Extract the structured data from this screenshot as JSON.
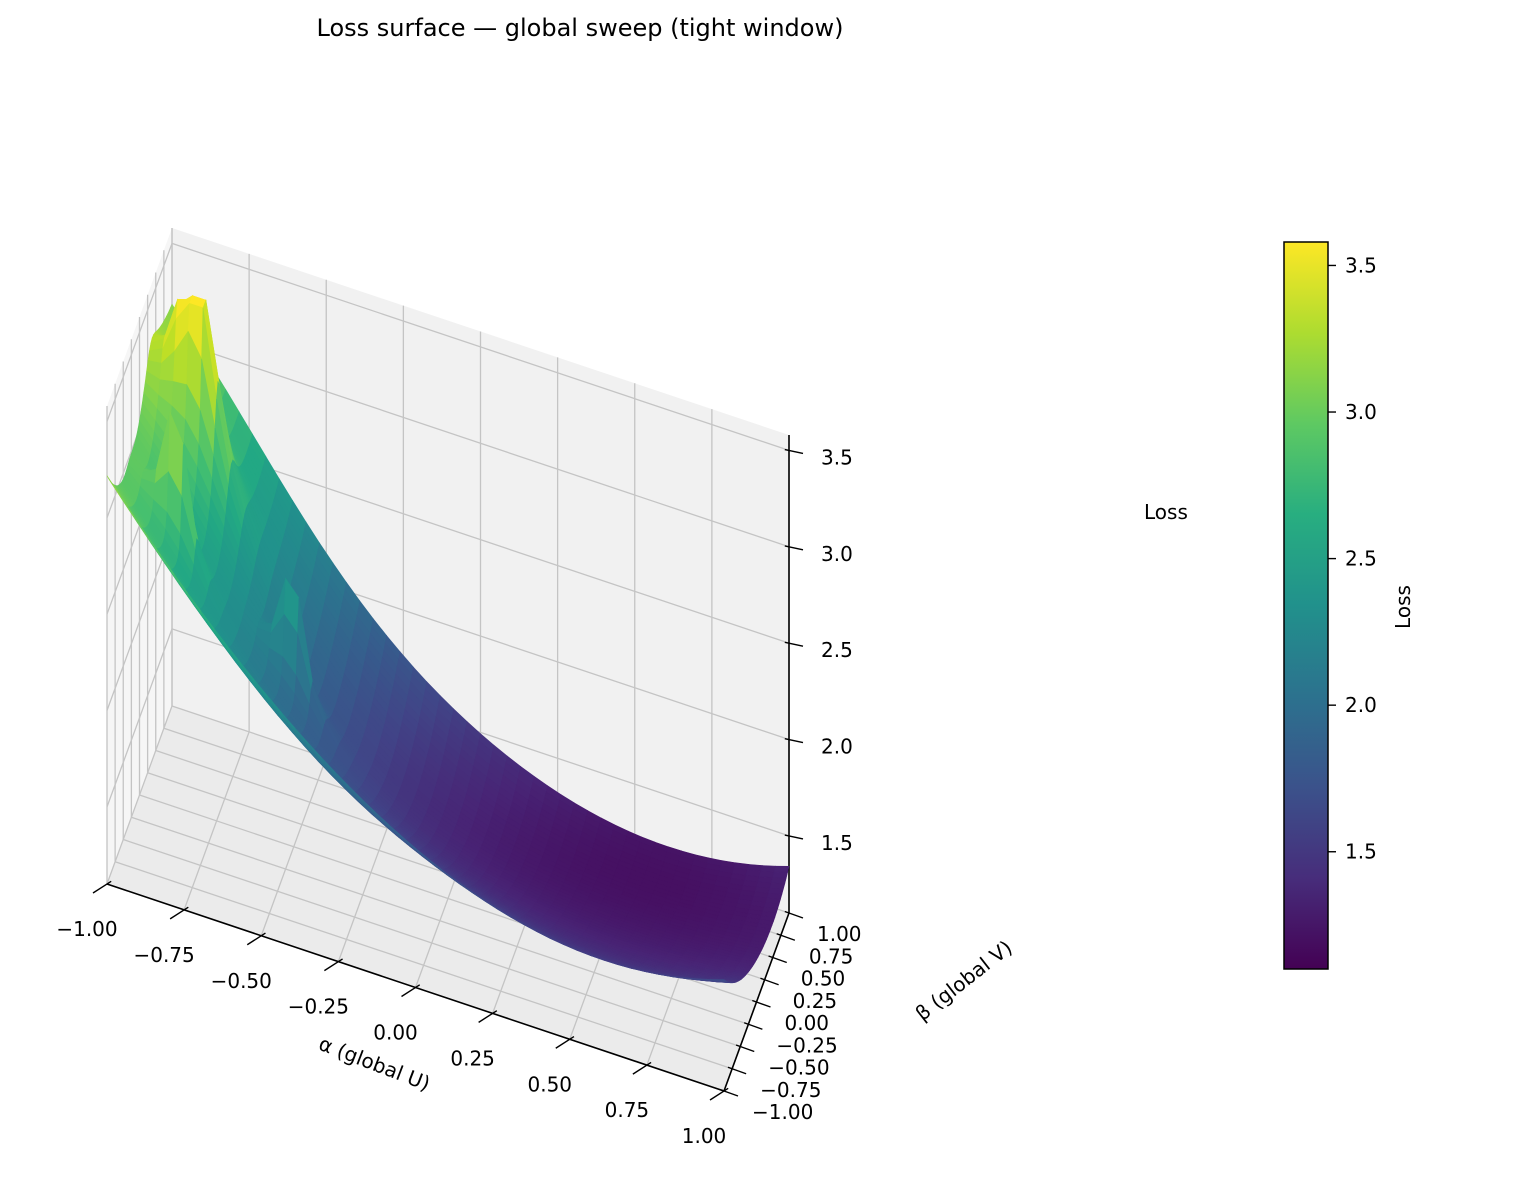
{
  "chart_data": {
    "type": "surface",
    "title": "Loss surface — global sweep (tight window)",
    "xlabel": "α (global U)",
    "ylabel": "β (global V)",
    "zlabel": "Loss",
    "colorbar_label": "Loss",
    "colormap": "viridis",
    "xlim": [
      -1.0,
      1.0
    ],
    "ylim": [
      -1.0,
      1.0
    ],
    "zlim": [
      1.1,
      3.58
    ],
    "grid": true,
    "x_ticks": [
      "−1.00",
      "−0.75",
      "−0.50",
      "−0.25",
      "0.00",
      "0.25",
      "0.50",
      "0.75",
      "1.00"
    ],
    "y_ticks": [
      "−1.00",
      "−0.75",
      "−0.50",
      "−0.25",
      "0.00",
      "0.25",
      "0.50",
      "0.75",
      "1.00"
    ],
    "z_ticks": [
      "1.5",
      "2.0",
      "2.5",
      "3.0",
      "3.5"
    ],
    "colorbar_ticks": [
      "1.5",
      "2.0",
      "2.5",
      "3.0",
      "3.5"
    ],
    "corner_values": [
      {
        "alpha": -1.0,
        "beta": -1.0,
        "loss": 1.85
      },
      {
        "alpha": -1.0,
        "beta": 1.0,
        "loss": 2.3
      },
      {
        "alpha": 1.0,
        "beta": -1.0,
        "loss": 1.55
      },
      {
        "alpha": 1.0,
        "beta": 1.0,
        "loss": 1.75
      }
    ],
    "minimum": {
      "alpha": 0.6,
      "beta": 0.3,
      "loss": 1.12
    },
    "peaks": [
      {
        "alpha": -0.85,
        "beta": 0.35,
        "loss": 3.58
      },
      {
        "alpha": -0.85,
        "beta": -0.3,
        "loss": 3.0
      },
      {
        "alpha": -0.5,
        "beta": -0.05,
        "loss": 2.9
      }
    ]
  }
}
